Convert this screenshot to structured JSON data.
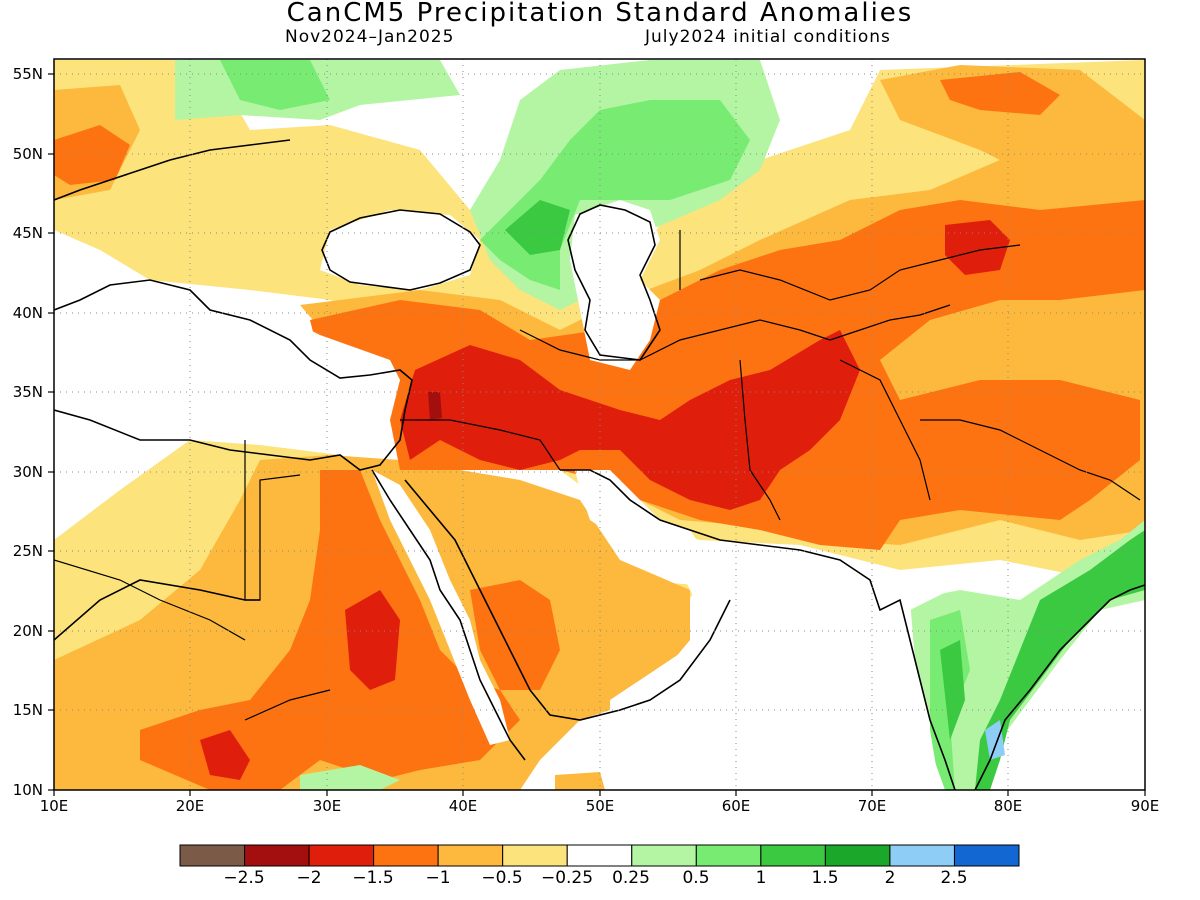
{
  "title": "CanCM5 Precipitation Standard Anomalies",
  "period": "Nov2024–Jan2025",
  "init": "July2024 initial conditions",
  "lat_labels": [
    "55N",
    "50N",
    "45N",
    "40N",
    "35N",
    "30N",
    "25N",
    "20N",
    "15N",
    "10N"
  ],
  "lon_labels": [
    "10E",
    "20E",
    "30E",
    "40E",
    "50E",
    "60E",
    "70E",
    "80E",
    "90E"
  ],
  "colorbar": {
    "colors": [
      "#7b5a47",
      "#a30f0f",
      "#e01e0c",
      "#fd7312",
      "#fcb93d",
      "#fde37c",
      "#ffffff",
      "#b3f5a2",
      "#78eb73",
      "#3bc942",
      "#1ba729",
      "#8ecdf5",
      "#1367d3"
    ],
    "labels": [
      "−2.5",
      "−2",
      "−1.5",
      "−1",
      "−0.5",
      "−0.25",
      "0.25",
      "0.5",
      "1",
      "1.5",
      "2",
      "2.5"
    ]
  },
  "map_data": {
    "extent": {
      "lon": [
        10,
        90
      ],
      "lat": [
        10,
        56
      ]
    },
    "gridlines": "dotted every 10 degrees",
    "regions": [
      {
        "level": -2,
        "lonlat": [
          [
            37.5,
            37
          ],
          [
            48,
            38
          ],
          [
            55,
            36
          ],
          [
            62,
            37.5
          ],
          [
            67,
            39
          ],
          [
            68,
            36
          ],
          [
            66,
            31
          ],
          [
            62,
            29
          ],
          [
            55,
            26
          ],
          [
            51,
            29
          ],
          [
            46,
            29.5
          ],
          [
            41,
            31
          ],
          [
            37,
            31
          ],
          [
            35,
            33
          ]
        ]
      },
      {
        "level": -2.5,
        "lonlat": [
          [
            38,
            35
          ],
          [
            39,
            35
          ],
          [
            39,
            33
          ],
          [
            38,
            33
          ]
        ]
      },
      {
        "level": -2,
        "lonlat": [
          [
            35,
            23
          ],
          [
            37,
            22
          ],
          [
            37,
            17
          ],
          [
            34,
            16
          ],
          [
            32,
            17
          ],
          [
            33,
            21
          ]
        ]
      },
      {
        "level": -2,
        "lonlat": [
          [
            20,
            14
          ],
          [
            23,
            14
          ],
          [
            25,
            11
          ],
          [
            23,
            10
          ],
          [
            20,
            11
          ]
        ]
      }
    ]
  }
}
